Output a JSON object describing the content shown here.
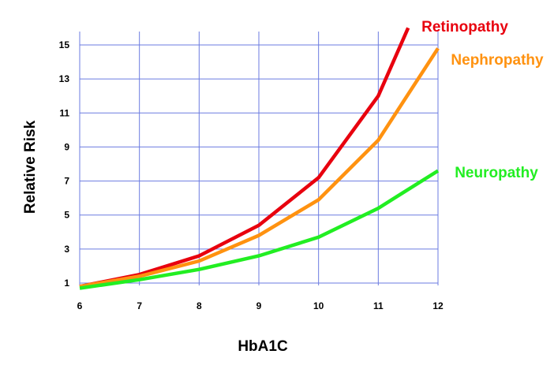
{
  "chart_data": {
    "type": "line",
    "xlabel": "HbA1C",
    "ylabel": "Relative Risk",
    "xlim": [
      6,
      12
    ],
    "ylim": [
      0.5,
      16
    ],
    "xticks": [
      6,
      7,
      8,
      9,
      10,
      11,
      12
    ],
    "yticks": [
      1,
      3,
      5,
      7,
      9,
      11,
      13,
      15
    ],
    "grid": true,
    "series": [
      {
        "name": "Retinopathy",
        "color": "#e8000e",
        "x": [
          6,
          7,
          8,
          9,
          10,
          11,
          11.5
        ],
        "y": [
          0.8,
          1.5,
          2.6,
          4.4,
          7.2,
          12.0,
          16.0
        ]
      },
      {
        "name": "Nephropathy",
        "color": "#ff9210",
        "x": [
          6,
          7,
          8,
          9,
          10,
          11,
          12
        ],
        "y": [
          0.8,
          1.4,
          2.3,
          3.8,
          5.9,
          9.4,
          14.8
        ]
      },
      {
        "name": "Neuropathy",
        "color": "#22ee22",
        "x": [
          6,
          7,
          8,
          9,
          10,
          11,
          12
        ],
        "y": [
          0.7,
          1.2,
          1.8,
          2.6,
          3.7,
          5.4,
          7.6
        ]
      }
    ]
  }
}
